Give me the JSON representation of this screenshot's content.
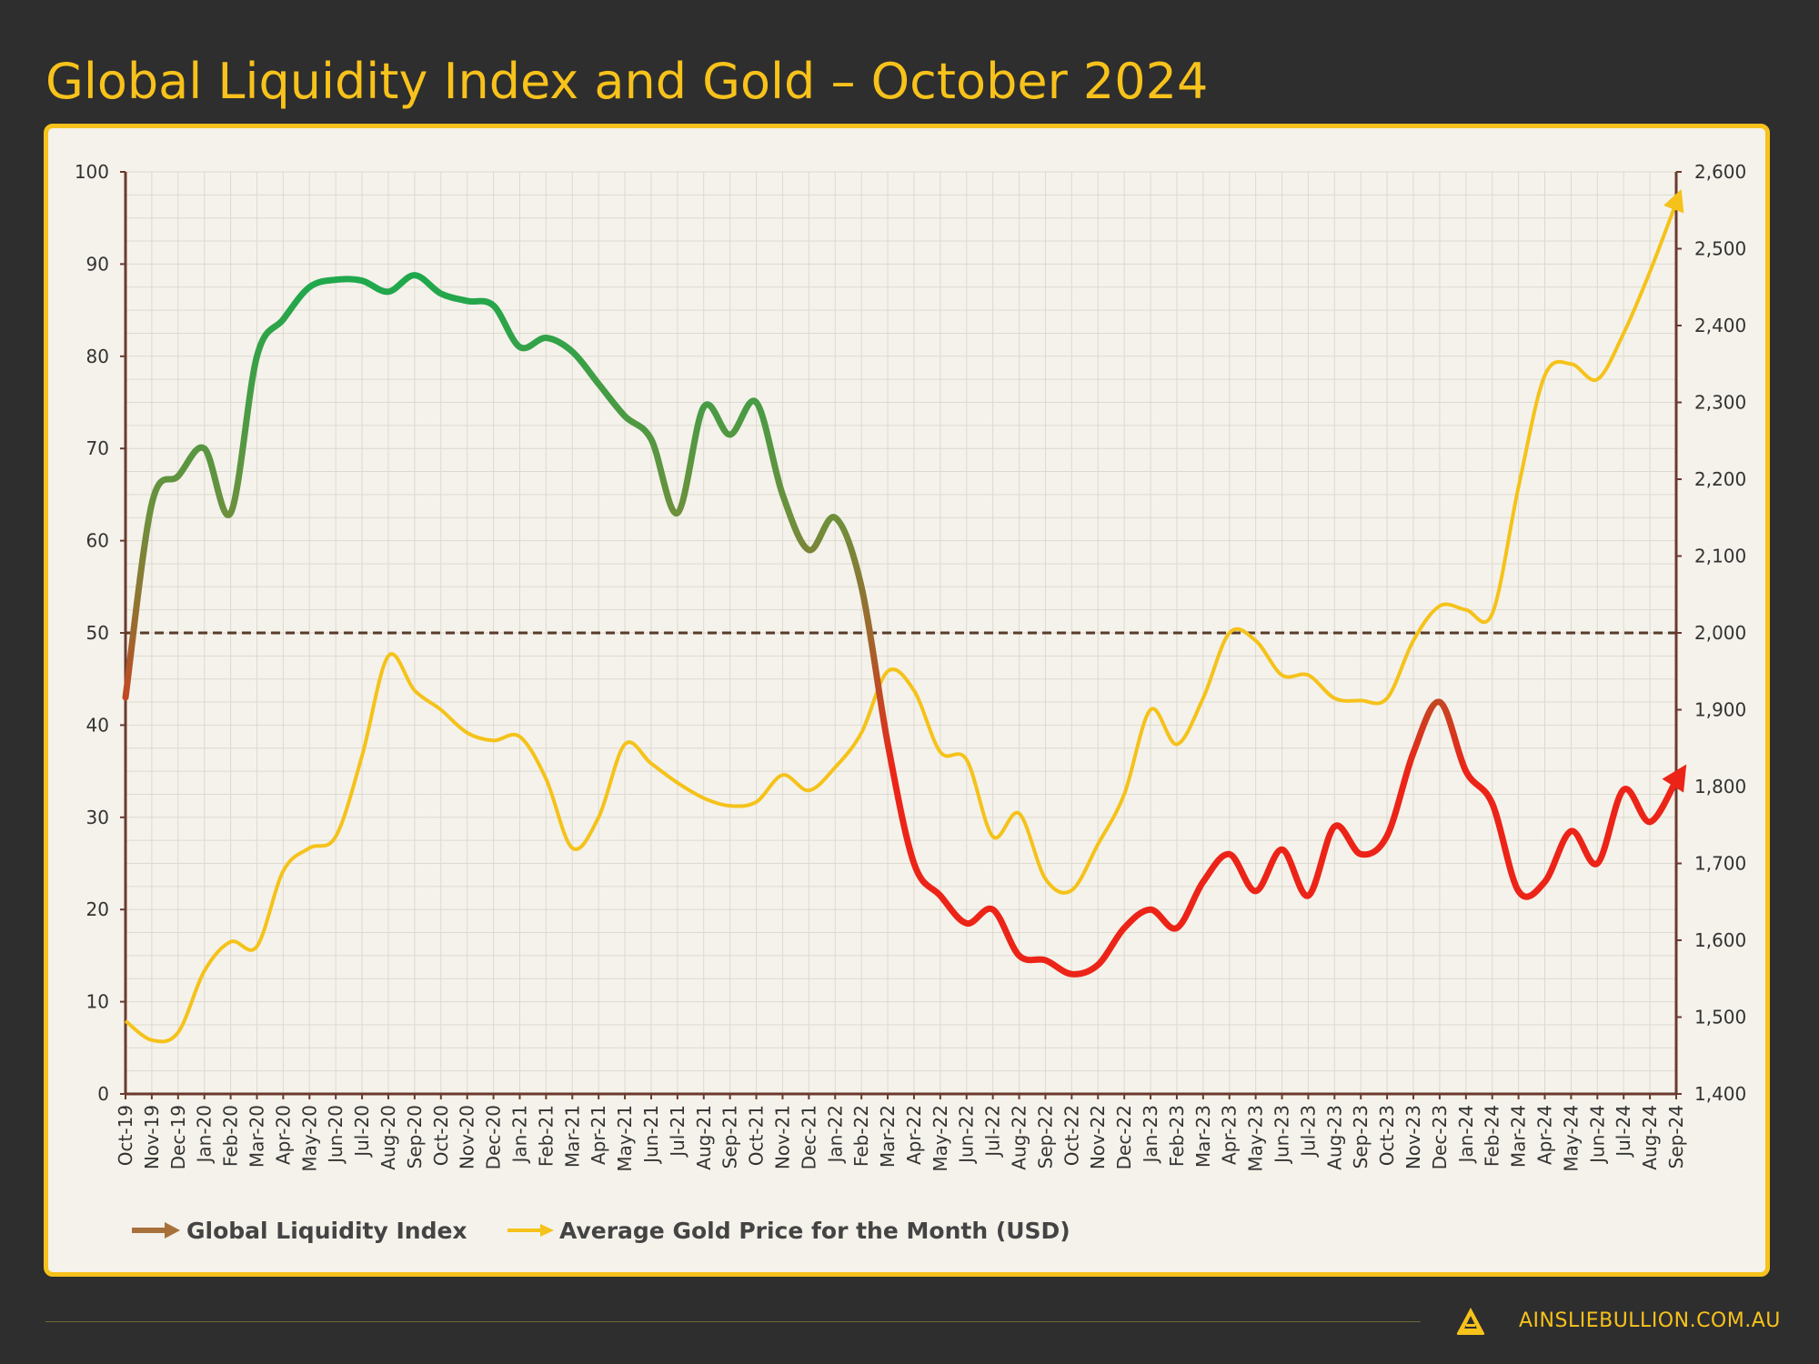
{
  "title": "Global Liquidity Index and Gold – October 2024",
  "footer": {
    "url": "AINSLIEBULLION.COM.AU",
    "logo_icon": "ainslie-a-logo-icon"
  },
  "colors": {
    "background": "#2e2e2e",
    "accent": "#f7c21b",
    "panel": "#f4f2ea",
    "gli_high": "#1fa84c",
    "gli_low": "#ec2418",
    "gold": "#f5c21a",
    "reference_line": "#5a3a2a"
  },
  "chart_data": {
    "type": "line",
    "title": "Global Liquidity Index and Gold – October 2024",
    "categories": [
      "Oct-19",
      "Nov-19",
      "Dec-19",
      "Jan-20",
      "Feb-20",
      "Mar-20",
      "Apr-20",
      "May-20",
      "Jun-20",
      "Jul-20",
      "Aug-20",
      "Sep-20",
      "Oct-20",
      "Nov-20",
      "Dec-20",
      "Jan-21",
      "Feb-21",
      "Mar-21",
      "Apr-21",
      "May-21",
      "Jun-21",
      "Jul-21",
      "Aug-21",
      "Sep-21",
      "Oct-21",
      "Nov-21",
      "Dec-21",
      "Jan-22",
      "Feb-22",
      "Mar-22",
      "Apr-22",
      "May-22",
      "Jun-22",
      "Jul-22",
      "Aug-22",
      "Sep-22",
      "Oct-22",
      "Nov-22",
      "Dec-22",
      "Jan-23",
      "Feb-23",
      "Mar-23",
      "Apr-23",
      "May-23",
      "Jun-23",
      "Jul-23",
      "Aug-23",
      "Sep-23",
      "Oct-23",
      "Nov-23",
      "Dec-23",
      "Jan-24",
      "Feb-24",
      "Mar-24",
      "Apr-24",
      "May-24",
      "Jun-24",
      "Jul-24",
      "Aug-24",
      "Sep-24"
    ],
    "series": [
      {
        "name": "Global Liquidity Index",
        "axis": "left",
        "values": [
          43,
          64,
          67,
          70,
          63,
          80,
          84,
          87.5,
          88.3,
          88.2,
          87,
          88.8,
          86.8,
          86,
          85.5,
          81,
          82,
          80.5,
          77,
          73.5,
          71,
          63,
          74.5,
          71.5,
          75,
          65,
          59,
          62.5,
          55,
          38,
          25,
          21.5,
          18.5,
          20,
          15,
          14.5,
          13,
          14,
          18,
          20,
          18,
          23,
          26,
          22,
          26.5,
          21.5,
          29,
          26,
          28,
          37,
          42.5,
          35,
          31.5,
          22,
          23,
          28.5,
          25,
          33,
          29.5,
          34
        ]
      },
      {
        "name": "Average Gold Price for the Month (USD)",
        "axis": "right",
        "values": [
          1495,
          1470,
          1480,
          1560,
          1598,
          1592,
          1690,
          1720,
          1735,
          1840,
          1970,
          1925,
          1900,
          1870,
          1860,
          1865,
          1810,
          1720,
          1760,
          1855,
          1830,
          1805,
          1785,
          1775,
          1780,
          1815,
          1795,
          1825,
          1870,
          1950,
          1925,
          1845,
          1835,
          1735,
          1765,
          1680,
          1665,
          1725,
          1790,
          1900,
          1855,
          1915,
          2000,
          1990,
          1945,
          1945,
          1915,
          1912,
          1915,
          1990,
          2035,
          2030,
          2025,
          2190,
          2335,
          2350,
          2330,
          2390,
          2470,
          2560
        ]
      }
    ],
    "y_left": {
      "range": [
        0,
        100
      ],
      "ticks": [
        "0",
        "10",
        "20",
        "30",
        "40",
        "50",
        "60",
        "70",
        "80",
        "90",
        "100"
      ]
    },
    "y_right": {
      "range": [
        1400,
        2600
      ],
      "ticks": [
        "1,400",
        "1,500",
        "1,600",
        "1,700",
        "1,800",
        "1,900",
        "2,000",
        "2,100",
        "2,200",
        "2,300",
        "2,400",
        "2,500",
        "2,600"
      ]
    },
    "reference_line": {
      "axis": "left",
      "value": 50,
      "style": "dashed"
    },
    "grid": true,
    "legend": "bottom-left"
  }
}
